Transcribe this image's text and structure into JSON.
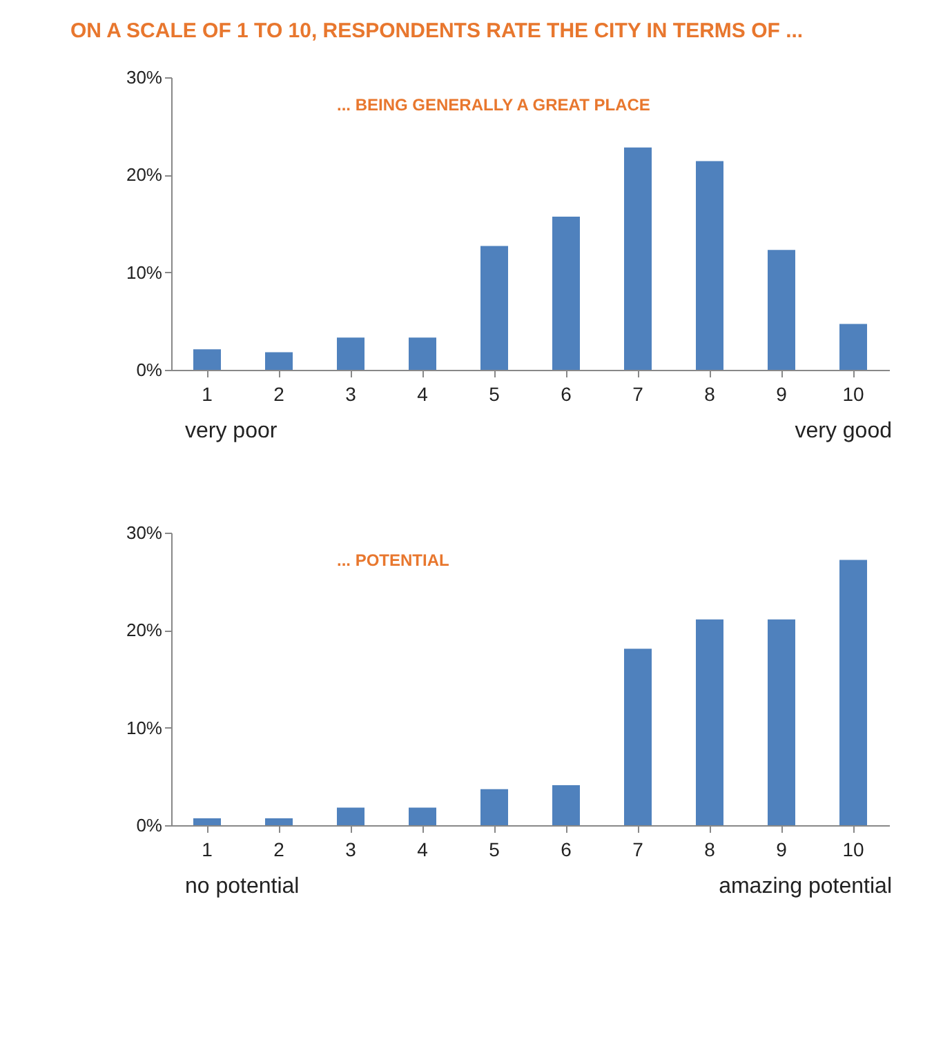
{
  "chart_data": [
    {
      "type": "bar",
      "title": "ON A SCALE OF 1 TO 10, RESPONDENTS RATE THE CITY IN TERMS OF ...",
      "subtitle": "... BEING GENERALLY A GREAT PLACE",
      "categories": [
        "1",
        "2",
        "3",
        "4",
        "5",
        "6",
        "7",
        "8",
        "9",
        "10"
      ],
      "series": [
        {
          "color": "#4f81bd",
          "values": [
            2.1,
            1.8,
            3.3,
            3.3,
            12.7,
            15.7,
            22.8,
            21.4,
            12.3,
            4.7
          ]
        }
      ],
      "ylim": [
        0,
        30
      ],
      "yticks": [
        {
          "value": 0,
          "label": "0%"
        },
        {
          "value": 10,
          "label": "10%"
        },
        {
          "value": 20,
          "label": "20%"
        },
        {
          "value": 30,
          "label": "30%"
        }
      ],
      "grid": false,
      "annotations": [
        "very poor",
        "very good"
      ]
    },
    {
      "type": "bar",
      "subtitle": "... POTENTIAL",
      "categories": [
        "1",
        "2",
        "3",
        "4",
        "5",
        "6",
        "7",
        "8",
        "9",
        "10"
      ],
      "series": [
        {
          "color": "#4f81bd",
          "values": [
            0.7,
            0.7,
            1.8,
            1.8,
            3.7,
            4.1,
            18.1,
            21.1,
            21.1,
            27.2
          ]
        }
      ],
      "ylim": [
        0,
        30
      ],
      "yticks": [
        {
          "value": 0,
          "label": "0%"
        },
        {
          "value": 10,
          "label": "10%"
        },
        {
          "value": 20,
          "label": "20%"
        },
        {
          "value": 30,
          "label": "30%"
        }
      ],
      "grid": false,
      "annotations": [
        "no potential",
        "amazing potential"
      ]
    }
  ]
}
